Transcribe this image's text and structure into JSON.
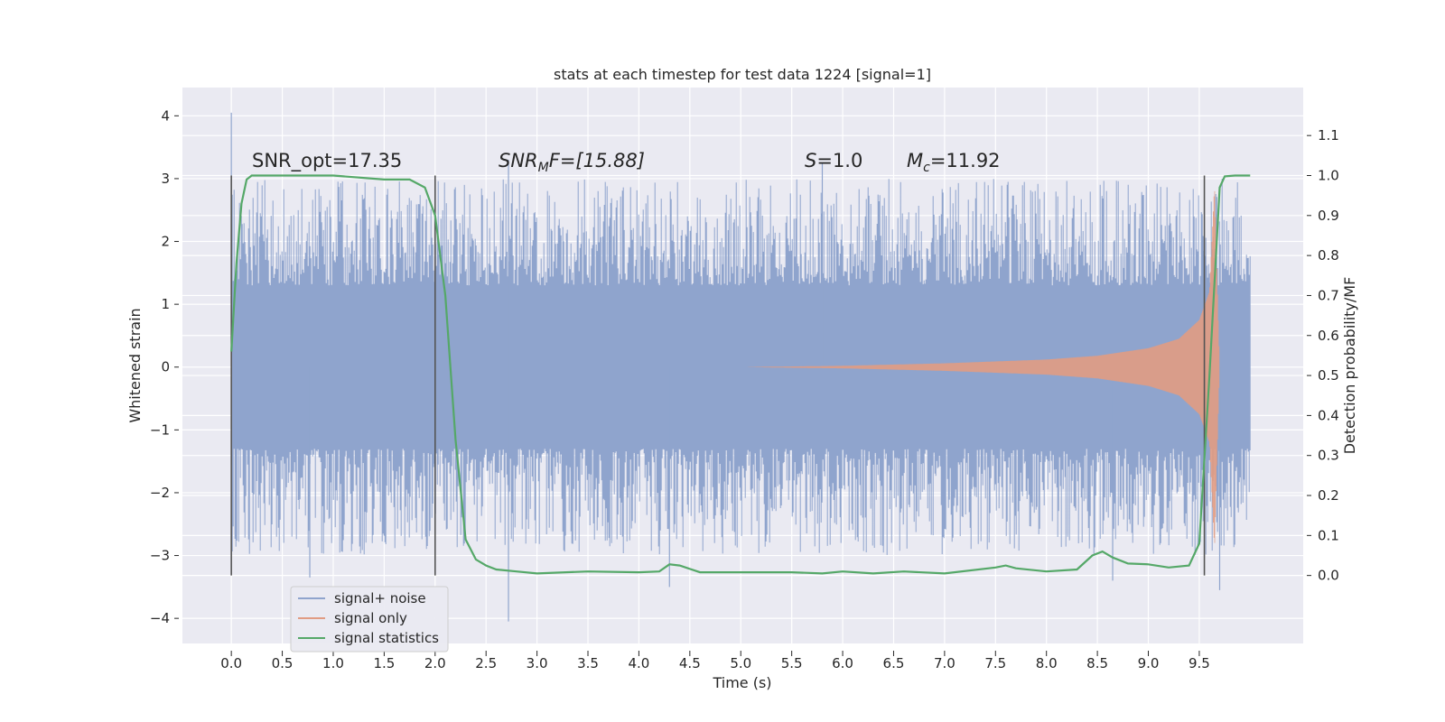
{
  "chart_data": {
    "type": "line",
    "title": "stats at each timestep for test data 1224 [signal=1]",
    "xlabel": "Time (s)",
    "ylabel": "Whitened strain",
    "y2label": "Detection probability/MF",
    "xlim": [
      -0.48,
      10.52
    ],
    "ylim": [
      -4.4,
      4.45
    ],
    "y2lim": [
      -0.17,
      1.22
    ],
    "x_ticks": [
      "0.0",
      "0.5",
      "1.0",
      "1.5",
      "2.0",
      "2.5",
      "3.0",
      "3.5",
      "4.0",
      "4.5",
      "5.0",
      "5.5",
      "6.0",
      "6.5",
      "7.0",
      "7.5",
      "8.0",
      "8.5",
      "9.0",
      "9.5"
    ],
    "x_tick_values": [
      0,
      0.5,
      1,
      1.5,
      2,
      2.5,
      3,
      3.5,
      4,
      4.5,
      5,
      5.5,
      6,
      6.5,
      7,
      7.5,
      8,
      8.5,
      9,
      9.5
    ],
    "y_ticks": [
      "4",
      "3",
      "2",
      "1",
      "0",
      "−1",
      "−2",
      "−3",
      "−4"
    ],
    "y_tick_values": [
      4,
      3,
      2,
      1,
      0,
      -1,
      -2,
      -3,
      -4
    ],
    "y2_ticks": [
      "1.1",
      "1.0",
      "0.9",
      "0.8",
      "0.7",
      "0.6",
      "0.5",
      "0.4",
      "0.3",
      "0.2",
      "0.1",
      "0.0"
    ],
    "y2_tick_values": [
      1.1,
      1.0,
      0.9,
      0.8,
      0.7,
      0.6,
      0.5,
      0.4,
      0.3,
      0.2,
      0.1,
      0.0
    ],
    "grid": true,
    "legend_position": "lower-left",
    "annotations": {
      "snr_opt": "SNR_opt=17.35",
      "snr_mf_main": "SNR",
      "snr_mf_sub": "M",
      "snr_mf_rest": "F=[15.88]",
      "s_main": "S",
      "s_rest": "=1.0",
      "mc_main": "M",
      "mc_sub": "c",
      "mc_rest": "=11.92"
    },
    "vertical_markers_x": [
      0.0,
      2.0,
      9.55
    ],
    "series": [
      {
        "name": "signal+ noise",
        "color": "#8fa4cd",
        "x_range": [
          0.0,
          10.0
        ],
        "noise_band_y": [
          -1.3,
          1.3
        ],
        "spike_peak_positive": 4.05,
        "spike_peak_negative": -4.05
      },
      {
        "name": "signal only",
        "color": "#e19c83",
        "envelope": {
          "x": [
            5.0,
            6.0,
            7.0,
            8.0,
            8.5,
            9.0,
            9.3,
            9.5,
            9.6,
            9.65,
            9.7
          ],
          "amplitude": [
            0.0,
            0.02,
            0.06,
            0.12,
            0.18,
            0.3,
            0.45,
            0.75,
            1.2,
            2.9,
            0.0
          ]
        }
      },
      {
        "name": "signal statistics",
        "color": "#55a868",
        "axis": "right",
        "x": [
          0.0,
          0.05,
          0.1,
          0.15,
          0.2,
          0.3,
          0.5,
          1.0,
          1.5,
          1.75,
          1.9,
          2.0,
          2.1,
          2.2,
          2.3,
          2.4,
          2.5,
          2.6,
          2.8,
          3.0,
          3.5,
          4.0,
          4.2,
          4.3,
          4.4,
          4.6,
          5.0,
          5.5,
          5.8,
          6.0,
          6.3,
          6.6,
          7.0,
          7.5,
          7.6,
          7.7,
          8.0,
          8.3,
          8.45,
          8.55,
          8.65,
          8.8,
          9.0,
          9.2,
          9.4,
          9.5,
          9.6,
          9.7,
          9.75,
          9.85,
          10.0
        ],
        "y": [
          0.56,
          0.78,
          0.93,
          0.99,
          1.0,
          1.0,
          1.0,
          1.0,
          0.99,
          0.99,
          0.97,
          0.9,
          0.7,
          0.34,
          0.09,
          0.04,
          0.025,
          0.015,
          0.01,
          0.005,
          0.01,
          0.008,
          0.01,
          0.028,
          0.025,
          0.008,
          0.008,
          0.008,
          0.005,
          0.01,
          0.005,
          0.01,
          0.005,
          0.02,
          0.025,
          0.018,
          0.01,
          0.015,
          0.05,
          0.06,
          0.045,
          0.03,
          0.028,
          0.02,
          0.025,
          0.08,
          0.5,
          0.97,
          0.998,
          1.0,
          1.0
        ]
      }
    ]
  }
}
